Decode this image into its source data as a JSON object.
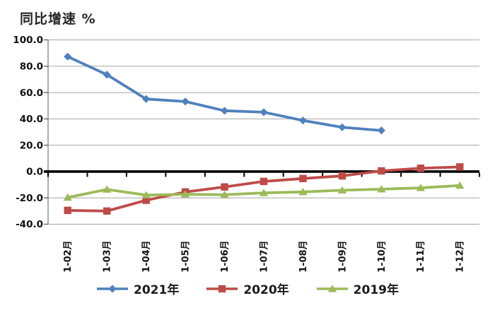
{
  "chart_title": "同比增速 %",
  "chart_data": {
    "type": "line",
    "title": "同比增速 %",
    "xlabel": "",
    "ylabel": "同比增速 %",
    "categories": [
      "1-02月",
      "1-03月",
      "1-04月",
      "1-05月",
      "1-06月",
      "1-07月",
      "1-08月",
      "1-09月",
      "1-10月",
      "1-11月",
      "1-12月"
    ],
    "series": [
      {
        "name": "2021年",
        "color": "#4F81BD",
        "marker": "diamond",
        "values": [
          87.3,
          73.6,
          55.1,
          53.2,
          46.2,
          45.1,
          38.8,
          33.6,
          31.2
        ]
      },
      {
        "name": "2020年",
        "color": "#BE4B48",
        "marker": "square",
        "values": [
          -29.5,
          -30.0,
          -21.8,
          -15.5,
          -11.7,
          -7.5,
          -5.3,
          -3.3,
          0.5,
          2.5,
          3.5
        ]
      },
      {
        "name": "2019年",
        "color": "#9BBB59",
        "marker": "triangle",
        "values": [
          -19.7,
          -13.6,
          -17.9,
          -17.3,
          -17.6,
          -16.2,
          -15.5,
          -14.2,
          -13.4,
          -12.4,
          -10.6
        ]
      }
    ],
    "ylim": [
      -40,
      100
    ],
    "ytick_step": 20,
    "yticks": [
      "100.0",
      "80.0",
      "60.0",
      "40.0",
      "20.0",
      "0.0",
      "-20.0",
      "-40.0"
    ],
    "grid": true,
    "grid_color": "#A6A6A6",
    "axis_color": "#808080",
    "zero_line_color": "#000000",
    "legend_position": "bottom"
  }
}
